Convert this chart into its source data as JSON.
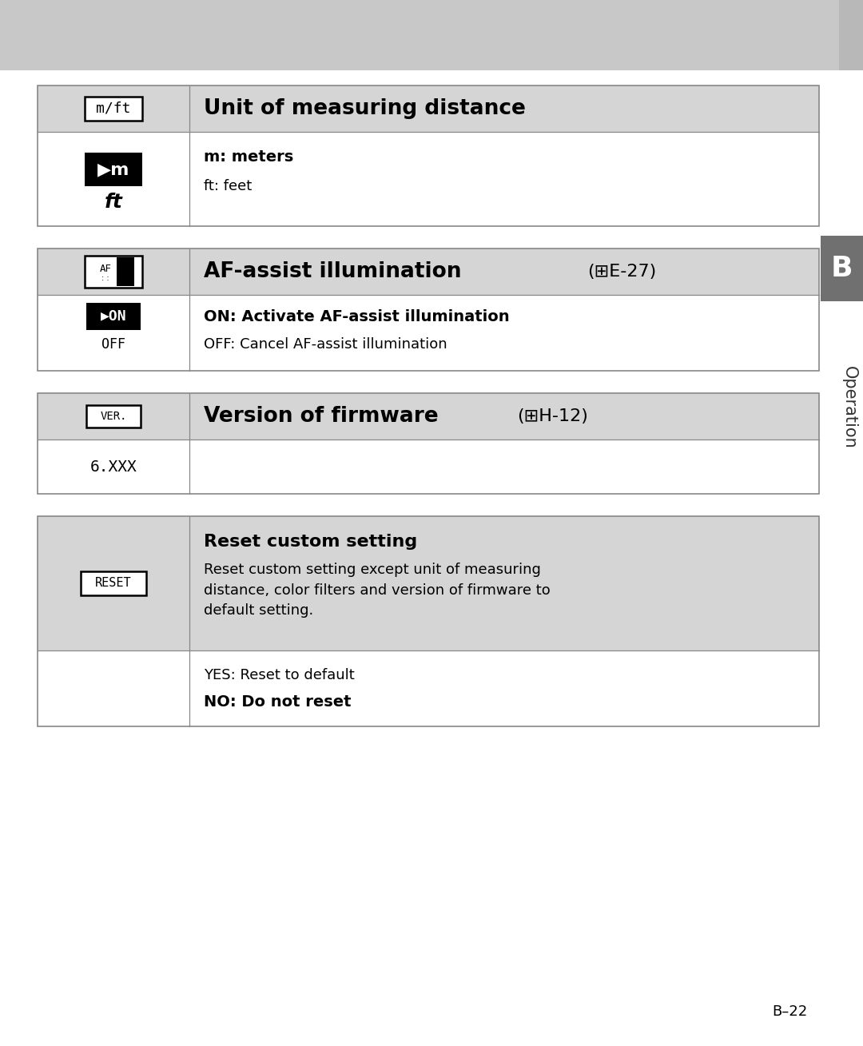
{
  "bg_color": "#ffffff",
  "top_bar_color": "#c8c8c8",
  "top_bar_shadow_color": "#a0a0a0",
  "table_header_bg": "#d5d5d5",
  "table_row_bg": "#ffffff",
  "table_border_color": "#888888",
  "sidebar_bg": "#707070",
  "sidebar_b_text": "B",
  "sidebar_op_text": "Operation",
  "page_number": "B–22",
  "t1_header_text": "Unit of measuring distance",
  "t1_row_bold": "m: meters",
  "t1_row_normal": "ft: feet",
  "t2_header_bold": "AF-assist illumination ",
  "t2_header_ref": "(⊞E-27)",
  "t2_row_bold": "ON: Activate AF-assist illumination",
  "t2_row_normal": "OFF: Cancel AF-assist illumination",
  "t3_header_bold": "Version of firmware ",
  "t3_header_ref": "(⊞H-12)",
  "t3_row_text": "6.XXX",
  "t4_header_bold": "Reset custom setting",
  "t4_header_normal": "Reset custom setting except unit of measuring\ndistance, color filters and version of firmware to\ndefault setting.",
  "t4_row_normal": "YES: Reset to default",
  "t4_row_bold": "NO: Do not reset"
}
